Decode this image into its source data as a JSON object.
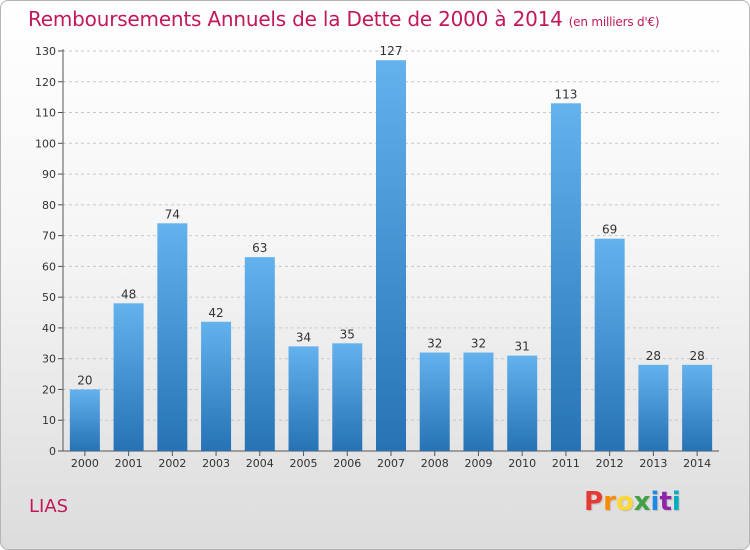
{
  "header": {
    "title": "Remboursements Annuels de la Dette de 2000 à 2014",
    "unit": "(en milliers d'€)"
  },
  "footer": {
    "place": "LIAS",
    "logo": "Proxiti",
    "logo_colors": [
      "#e53935",
      "#fb8c00",
      "#fdd835",
      "#43a047",
      "#1e88e5",
      "#8e24aa",
      "#00acc1"
    ]
  },
  "colors": {
    "bar_top": "#63b2ee",
    "bar_bottom": "#2672b5",
    "title": "#c2185b"
  },
  "chart_data": {
    "type": "bar",
    "categories": [
      "2000",
      "2001",
      "2002",
      "2003",
      "2004",
      "2005",
      "2006",
      "2007",
      "2008",
      "2009",
      "2010",
      "2011",
      "2012",
      "2013",
      "2014"
    ],
    "values": [
      20,
      48,
      74,
      42,
      63,
      34,
      35,
      127,
      32,
      32,
      31,
      113,
      69,
      28,
      28
    ],
    "ylim": [
      0,
      130
    ],
    "yticks": [
      0,
      10,
      20,
      30,
      40,
      50,
      60,
      70,
      80,
      90,
      100,
      110,
      120,
      130
    ],
    "grid": true,
    "xlabel": "",
    "ylabel": ""
  }
}
